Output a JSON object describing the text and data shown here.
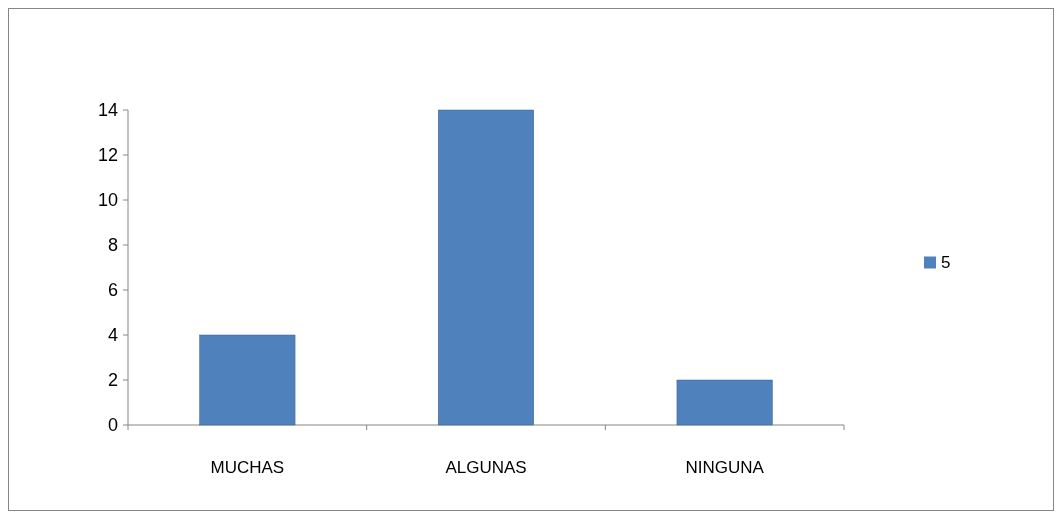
{
  "chart_data": {
    "type": "bar",
    "categories": [
      "MUCHAS",
      "ALGUNAS",
      "NINGUNA"
    ],
    "series": [
      {
        "name": "5",
        "color": "#4f81bd",
        "values": [
          4,
          14,
          2
        ]
      }
    ],
    "ylim": [
      0,
      14
    ],
    "yticks": [
      0,
      2,
      4,
      6,
      8,
      10,
      12,
      14
    ],
    "grid": false,
    "legend": "right"
  }
}
